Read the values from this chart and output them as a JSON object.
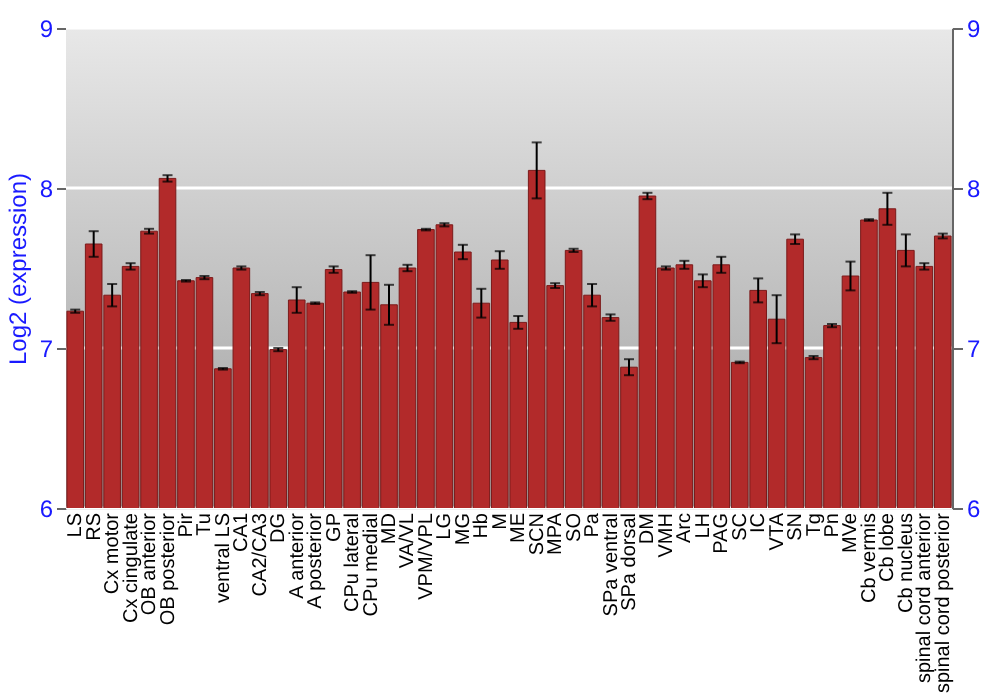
{
  "chart_data": {
    "type": "bar",
    "ylabel": "Log2 (expression)",
    "categories": [
      "LS",
      "RS",
      "Cx motor",
      "Cx cingulate",
      "OB anterior",
      "OB posterior",
      "Pir",
      "Tu",
      "ventral LS",
      "CA1",
      "CA2/CA3",
      "DG",
      "A anterior",
      "A posterior",
      "GP",
      "CPu lateral",
      "CPu medial",
      "MD",
      "VA/VL",
      "VPM/VPL",
      "LG",
      "MG",
      "Hb",
      "M",
      "ME",
      "SCN",
      "MPA",
      "SO",
      "Pa",
      "SPa ventral",
      "SPa dorsal",
      "DM",
      "VMH",
      "Arc",
      "LH",
      "PAG",
      "SC",
      "IC",
      "VTA",
      "SN",
      "Tg",
      "Pn",
      "MVe",
      "Cb vermis",
      "Cb lobe",
      "Cb nucleus",
      "spinal cord anterior",
      "spinal cord posterior"
    ],
    "values": [
      7.23,
      7.65,
      7.33,
      7.51,
      7.73,
      8.06,
      7.42,
      7.44,
      6.87,
      7.5,
      7.34,
      6.99,
      7.3,
      7.28,
      7.49,
      7.35,
      7.41,
      7.27,
      7.5,
      7.74,
      7.77,
      7.6,
      7.28,
      7.55,
      7.16,
      8.11,
      7.39,
      7.61,
      7.33,
      7.19,
      6.88,
      7.95,
      7.5,
      7.52,
      7.42,
      7.52,
      6.91,
      7.36,
      7.18,
      7.68,
      6.94,
      7.14,
      7.45,
      7.8,
      7.87,
      7.61,
      7.51,
      7.7
    ],
    "errors": [
      0.01,
      0.08,
      0.07,
      0.02,
      0.015,
      0.02,
      0.005,
      0.01,
      0.005,
      0.01,
      0.01,
      0.01,
      0.08,
      0.005,
      0.02,
      0.005,
      0.17,
      0.125,
      0.02,
      0.005,
      0.01,
      0.045,
      0.09,
      0.055,
      0.04,
      0.175,
      0.015,
      0.01,
      0.07,
      0.02,
      0.05,
      0.02,
      0.01,
      0.025,
      0.04,
      0.05,
      0.005,
      0.075,
      0.15,
      0.03,
      0.01,
      0.01,
      0.09,
      0.005,
      0.1,
      0.1,
      0.02,
      0.015
    ],
    "color": "#b22a2a",
    "ylim": [
      6,
      9
    ],
    "yticks": [
      6,
      7,
      8,
      9
    ],
    "y2lim": [
      6,
      9
    ],
    "y2ticks": [
      6,
      7,
      8,
      9
    ],
    "grid": "y"
  }
}
